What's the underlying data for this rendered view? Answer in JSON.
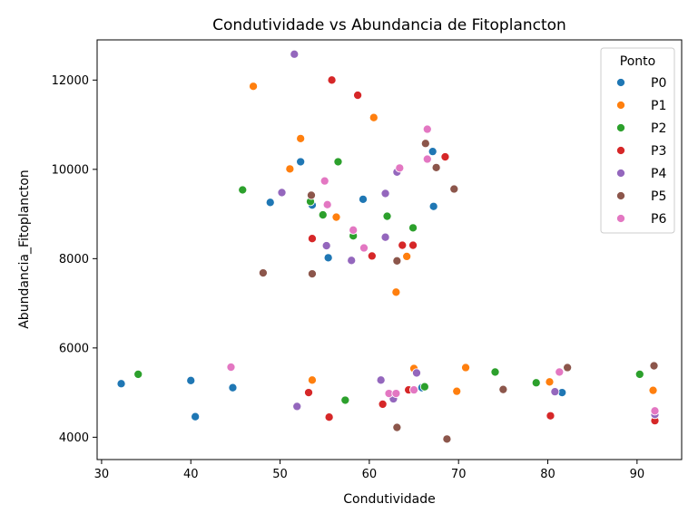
{
  "chart_data": {
    "type": "scatter",
    "title": "Condutividade vs Abundancia de Fitoplancton",
    "xlabel": "Condutividade",
    "ylabel": "Abundancia_Fitoplancton",
    "xlim": [
      29.5,
      95
    ],
    "ylim": [
      3500,
      12900
    ],
    "xticks": [
      30,
      40,
      50,
      60,
      70,
      80,
      90
    ],
    "yticks": [
      4000,
      6000,
      8000,
      10000,
      12000
    ],
    "grid": false,
    "legend": {
      "title": "Ponto",
      "position": "top-right"
    },
    "series": [
      {
        "name": "P0",
        "color": "#1f77b4",
        "points": [
          [
            32.2,
            5200
          ],
          [
            40.0,
            5270
          ],
          [
            40.5,
            4460
          ],
          [
            44.7,
            5110
          ],
          [
            48.9,
            9260
          ],
          [
            52.3,
            10170
          ],
          [
            53.6,
            9200
          ],
          [
            55.4,
            8020
          ],
          [
            59.3,
            9330
          ],
          [
            65.9,
            5110
          ],
          [
            67.1,
            10400
          ],
          [
            67.2,
            9170
          ],
          [
            81.6,
            5000
          ],
          [
            92.0,
            4480
          ]
        ]
      },
      {
        "name": "P1",
        "color": "#ff7f0e",
        "points": [
          [
            47.0,
            11860
          ],
          [
            51.1,
            10010
          ],
          [
            52.3,
            10690
          ],
          [
            53.6,
            5280
          ],
          [
            56.3,
            8930
          ],
          [
            60.5,
            11160
          ],
          [
            63.0,
            7250
          ],
          [
            64.2,
            8050
          ],
          [
            65.0,
            5540
          ],
          [
            69.8,
            5030
          ],
          [
            70.8,
            5560
          ],
          [
            80.2,
            5240
          ],
          [
            91.8,
            5050
          ]
        ]
      },
      {
        "name": "P2",
        "color": "#2ca02c",
        "points": [
          [
            34.1,
            5410
          ],
          [
            45.8,
            9540
          ],
          [
            53.4,
            9280
          ],
          [
            54.8,
            8980
          ],
          [
            56.5,
            10170
          ],
          [
            57.3,
            4830
          ],
          [
            58.2,
            8510
          ],
          [
            62.0,
            8950
          ],
          [
            64.9,
            8690
          ],
          [
            66.2,
            5130
          ],
          [
            74.1,
            5460
          ],
          [
            78.7,
            5220
          ],
          [
            90.3,
            5410
          ]
        ]
      },
      {
        "name": "P3",
        "color": "#d62728",
        "points": [
          [
            53.2,
            5000
          ],
          [
            53.6,
            8450
          ],
          [
            55.5,
            4450
          ],
          [
            55.8,
            12000
          ],
          [
            58.7,
            11660
          ],
          [
            60.3,
            8060
          ],
          [
            61.5,
            4740
          ],
          [
            63.7,
            8300
          ],
          [
            64.4,
            5060
          ],
          [
            64.9,
            8300
          ],
          [
            68.5,
            10280
          ],
          [
            80.3,
            4480
          ],
          [
            92.0,
            4370
          ]
        ]
      },
      {
        "name": "P4",
        "color": "#9467bd",
        "points": [
          [
            50.2,
            9480
          ],
          [
            51.6,
            12580
          ],
          [
            51.9,
            4690
          ],
          [
            55.2,
            8290
          ],
          [
            58.0,
            7960
          ],
          [
            61.3,
            5280
          ],
          [
            61.8,
            9460
          ],
          [
            61.8,
            8480
          ],
          [
            62.7,
            4860
          ],
          [
            63.1,
            9940
          ],
          [
            65.3,
            5440
          ],
          [
            80.8,
            5020
          ],
          [
            92.0,
            4510
          ]
        ]
      },
      {
        "name": "P5",
        "color": "#8c564b",
        "points": [
          [
            48.1,
            7680
          ],
          [
            53.5,
            9420
          ],
          [
            53.6,
            7660
          ],
          [
            63.1,
            7950
          ],
          [
            63.1,
            4220
          ],
          [
            66.3,
            10580
          ],
          [
            67.5,
            10040
          ],
          [
            68.7,
            3960
          ],
          [
            69.5,
            9560
          ],
          [
            75.0,
            5070
          ],
          [
            82.2,
            5560
          ],
          [
            91.9,
            5600
          ]
        ]
      },
      {
        "name": "P6",
        "color": "#e377c2",
        "points": [
          [
            44.5,
            5570
          ],
          [
            55.0,
            9740
          ],
          [
            55.3,
            9210
          ],
          [
            58.2,
            8640
          ],
          [
            59.4,
            8240
          ],
          [
            62.2,
            4980
          ],
          [
            63.0,
            4980
          ],
          [
            63.4,
            10030
          ],
          [
            65.0,
            5060
          ],
          [
            66.5,
            10900
          ],
          [
            66.5,
            10230
          ],
          [
            81.3,
            5460
          ],
          [
            92.0,
            4590
          ]
        ]
      }
    ]
  }
}
